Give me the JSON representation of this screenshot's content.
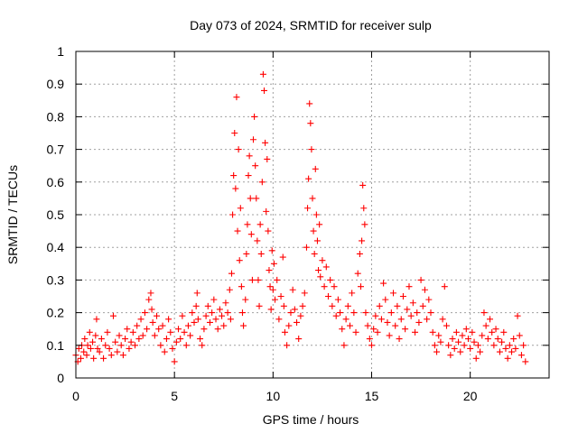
{
  "chart_data": {
    "type": "scatter",
    "title": "Day 073 of 2024, SRMTID for receiver sulp",
    "xlabel": "GPS time / hours",
    "ylabel": "SRMTID / TECUs",
    "xlim": [
      0,
      24
    ],
    "ylim": [
      0,
      1
    ],
    "xticks": [
      0,
      5,
      10,
      15,
      20
    ],
    "xtick_labels": [
      "0",
      "5",
      "10",
      "15",
      "20"
    ],
    "yticks": [
      0,
      0.1,
      0.2,
      0.3,
      0.4,
      0.5,
      0.6,
      0.7,
      0.8,
      0.9,
      1
    ],
    "ytick_labels": [
      "0",
      "0.1",
      "0.2",
      "0.3",
      "0.4",
      "0.5",
      "0.6",
      "0.7",
      "0.8",
      "0.9",
      "1"
    ],
    "grid": true,
    "marker": "plus",
    "color": "#ff0000",
    "series": [
      {
        "name": "SRMTID",
        "points": [
          [
            0.0,
            0.07
          ],
          [
            0.1,
            0.05
          ],
          [
            0.15,
            0.09
          ],
          [
            0.25,
            0.06
          ],
          [
            0.3,
            0.1
          ],
          [
            0.4,
            0.08
          ],
          [
            0.45,
            0.12
          ],
          [
            0.55,
            0.07
          ],
          [
            0.6,
            0.1
          ],
          [
            0.7,
            0.14
          ],
          [
            0.75,
            0.09
          ],
          [
            0.85,
            0.11
          ],
          [
            0.9,
            0.06
          ],
          [
            1.0,
            0.13
          ],
          [
            1.05,
            0.18
          ],
          [
            1.1,
            0.09
          ],
          [
            1.2,
            0.08
          ],
          [
            1.3,
            0.12
          ],
          [
            1.4,
            0.06
          ],
          [
            1.5,
            0.1
          ],
          [
            1.6,
            0.14
          ],
          [
            1.7,
            0.09
          ],
          [
            1.8,
            0.07
          ],
          [
            1.9,
            0.19
          ],
          [
            2.0,
            0.11
          ],
          [
            2.1,
            0.08
          ],
          [
            2.2,
            0.13
          ],
          [
            2.3,
            0.1
          ],
          [
            2.4,
            0.07
          ],
          [
            2.5,
            0.12
          ],
          [
            2.6,
            0.15
          ],
          [
            2.7,
            0.09
          ],
          [
            2.8,
            0.11
          ],
          [
            2.9,
            0.14
          ],
          [
            3.0,
            0.1
          ],
          [
            3.1,
            0.16
          ],
          [
            3.2,
            0.12
          ],
          [
            3.3,
            0.18
          ],
          [
            3.4,
            0.13
          ],
          [
            3.5,
            0.2
          ],
          [
            3.6,
            0.15
          ],
          [
            3.7,
            0.24
          ],
          [
            3.8,
            0.26
          ],
          [
            3.85,
            0.21
          ],
          [
            3.9,
            0.17
          ],
          [
            4.0,
            0.13
          ],
          [
            4.1,
            0.19
          ],
          [
            4.2,
            0.15
          ],
          [
            4.3,
            0.1
          ],
          [
            4.4,
            0.16
          ],
          [
            4.5,
            0.08
          ],
          [
            4.6,
            0.12
          ],
          [
            4.7,
            0.18
          ],
          [
            4.8,
            0.14
          ],
          [
            4.9,
            0.09
          ],
          [
            5.0,
            0.05
          ],
          [
            5.1,
            0.11
          ],
          [
            5.2,
            0.15
          ],
          [
            5.3,
            0.12
          ],
          [
            5.4,
            0.19
          ],
          [
            5.5,
            0.14
          ],
          [
            5.6,
            0.1
          ],
          [
            5.7,
            0.16
          ],
          [
            5.8,
            0.13
          ],
          [
            5.9,
            0.2
          ],
          [
            6.0,
            0.17
          ],
          [
            6.1,
            0.22
          ],
          [
            6.15,
            0.26
          ],
          [
            6.2,
            0.18
          ],
          [
            6.3,
            0.12
          ],
          [
            6.4,
            0.1
          ],
          [
            6.5,
            0.15
          ],
          [
            6.6,
            0.19
          ],
          [
            6.7,
            0.22
          ],
          [
            6.8,
            0.17
          ],
          [
            6.9,
            0.2
          ],
          [
            7.0,
            0.24
          ],
          [
            7.1,
            0.18
          ],
          [
            7.2,
            0.15
          ],
          [
            7.3,
            0.21
          ],
          [
            7.4,
            0.19
          ],
          [
            7.5,
            0.16
          ],
          [
            7.6,
            0.23
          ],
          [
            7.7,
            0.2
          ],
          [
            7.8,
            0.27
          ],
          [
            7.85,
            0.18
          ],
          [
            7.9,
            0.32
          ],
          [
            7.95,
            0.5
          ],
          [
            8.0,
            0.62
          ],
          [
            8.05,
            0.75
          ],
          [
            8.1,
            0.58
          ],
          [
            8.15,
            0.86
          ],
          [
            8.2,
            0.45
          ],
          [
            8.25,
            0.7
          ],
          [
            8.3,
            0.36
          ],
          [
            8.35,
            0.52
          ],
          [
            8.4,
            0.28
          ],
          [
            8.45,
            0.2
          ],
          [
            8.5,
            0.16
          ],
          [
            8.6,
            0.24
          ],
          [
            8.65,
            0.38
          ],
          [
            8.7,
            0.47
          ],
          [
            8.75,
            0.62
          ],
          [
            8.8,
            0.68
          ],
          [
            8.85,
            0.55
          ],
          [
            8.9,
            0.44
          ],
          [
            8.95,
            0.3
          ],
          [
            9.0,
            0.73
          ],
          [
            9.05,
            0.8
          ],
          [
            9.1,
            0.65
          ],
          [
            9.15,
            0.55
          ],
          [
            9.2,
            0.42
          ],
          [
            9.25,
            0.3
          ],
          [
            9.3,
            0.22
          ],
          [
            9.35,
            0.47
          ],
          [
            9.4,
            0.38
          ],
          [
            9.45,
            0.6
          ],
          [
            9.5,
            0.93
          ],
          [
            9.55,
            0.88
          ],
          [
            9.6,
            0.72
          ],
          [
            9.65,
            0.51
          ],
          [
            9.7,
            0.67
          ],
          [
            9.75,
            0.45
          ],
          [
            9.8,
            0.33
          ],
          [
            9.85,
            0.28
          ],
          [
            9.9,
            0.21
          ],
          [
            9.95,
            0.39
          ],
          [
            10.0,
            0.27
          ],
          [
            10.05,
            0.35
          ],
          [
            10.1,
            0.24
          ],
          [
            10.2,
            0.3
          ],
          [
            10.3,
            0.18
          ],
          [
            10.4,
            0.25
          ],
          [
            10.5,
            0.37
          ],
          [
            10.55,
            0.22
          ],
          [
            10.6,
            0.14
          ],
          [
            10.7,
            0.1
          ],
          [
            10.8,
            0.16
          ],
          [
            10.9,
            0.2
          ],
          [
            11.0,
            0.27
          ],
          [
            11.1,
            0.21
          ],
          [
            11.2,
            0.17
          ],
          [
            11.3,
            0.12
          ],
          [
            11.4,
            0.19
          ],
          [
            11.5,
            0.22
          ],
          [
            11.6,
            0.26
          ],
          [
            11.7,
            0.4
          ],
          [
            11.75,
            0.52
          ],
          [
            11.8,
            0.61
          ],
          [
            11.85,
            0.84
          ],
          [
            11.9,
            0.78
          ],
          [
            11.95,
            0.7
          ],
          [
            12.0,
            0.55
          ],
          [
            12.05,
            0.45
          ],
          [
            12.1,
            0.38
          ],
          [
            12.15,
            0.64
          ],
          [
            12.2,
            0.5
          ],
          [
            12.25,
            0.42
          ],
          [
            12.3,
            0.33
          ],
          [
            12.35,
            0.47
          ],
          [
            12.4,
            0.31
          ],
          [
            12.5,
            0.36
          ],
          [
            12.6,
            0.28
          ],
          [
            12.7,
            0.34
          ],
          [
            12.8,
            0.25
          ],
          [
            12.9,
            0.3
          ],
          [
            13.0,
            0.22
          ],
          [
            13.1,
            0.28
          ],
          [
            13.2,
            0.19
          ],
          [
            13.3,
            0.24
          ],
          [
            13.4,
            0.2
          ],
          [
            13.5,
            0.15
          ],
          [
            13.6,
            0.1
          ],
          [
            13.7,
            0.18
          ],
          [
            13.8,
            0.22
          ],
          [
            13.9,
            0.16
          ],
          [
            14.0,
            0.26
          ],
          [
            14.1,
            0.2
          ],
          [
            14.2,
            0.14
          ],
          [
            14.3,
            0.32
          ],
          [
            14.4,
            0.38
          ],
          [
            14.45,
            0.28
          ],
          [
            14.5,
            0.42
          ],
          [
            14.55,
            0.59
          ],
          [
            14.6,
            0.52
          ],
          [
            14.65,
            0.47
          ],
          [
            14.7,
            0.2
          ],
          [
            14.8,
            0.16
          ],
          [
            14.9,
            0.12
          ],
          [
            15.0,
            0.1
          ],
          [
            15.1,
            0.15
          ],
          [
            15.2,
            0.19
          ],
          [
            15.3,
            0.14
          ],
          [
            15.4,
            0.22
          ],
          [
            15.5,
            0.18
          ],
          [
            15.6,
            0.29
          ],
          [
            15.7,
            0.24
          ],
          [
            15.8,
            0.17
          ],
          [
            15.9,
            0.13
          ],
          [
            16.0,
            0.2
          ],
          [
            16.1,
            0.26
          ],
          [
            16.2,
            0.16
          ],
          [
            16.3,
            0.22
          ],
          [
            16.4,
            0.12
          ],
          [
            16.5,
            0.18
          ],
          [
            16.6,
            0.25
          ],
          [
            16.7,
            0.15
          ],
          [
            16.8,
            0.21
          ],
          [
            16.9,
            0.28
          ],
          [
            17.0,
            0.19
          ],
          [
            17.1,
            0.23
          ],
          [
            17.2,
            0.14
          ],
          [
            17.3,
            0.2
          ],
          [
            17.4,
            0.17
          ],
          [
            17.5,
            0.3
          ],
          [
            17.6,
            0.22
          ],
          [
            17.7,
            0.27
          ],
          [
            17.8,
            0.18
          ],
          [
            17.9,
            0.24
          ],
          [
            18.0,
            0.2
          ],
          [
            18.1,
            0.14
          ],
          [
            18.2,
            0.1
          ],
          [
            18.3,
            0.08
          ],
          [
            18.4,
            0.13
          ],
          [
            18.5,
            0.11
          ],
          [
            18.6,
            0.18
          ],
          [
            18.7,
            0.28
          ],
          [
            18.8,
            0.16
          ],
          [
            18.9,
            0.1
          ],
          [
            19.0,
            0.07
          ],
          [
            19.1,
            0.12
          ],
          [
            19.2,
            0.09
          ],
          [
            19.3,
            0.14
          ],
          [
            19.4,
            0.11
          ],
          [
            19.5,
            0.08
          ],
          [
            19.6,
            0.13
          ],
          [
            19.7,
            0.1
          ],
          [
            19.8,
            0.15
          ],
          [
            19.9,
            0.12
          ],
          [
            20.0,
            0.09
          ],
          [
            20.1,
            0.14
          ],
          [
            20.2,
            0.11
          ],
          [
            20.3,
            0.06
          ],
          [
            20.4,
            0.1
          ],
          [
            20.5,
            0.08
          ],
          [
            20.6,
            0.13
          ],
          [
            20.7,
            0.2
          ],
          [
            20.8,
            0.16
          ],
          [
            20.9,
            0.12
          ],
          [
            21.0,
            0.18
          ],
          [
            21.1,
            0.14
          ],
          [
            21.2,
            0.1
          ],
          [
            21.3,
            0.15
          ],
          [
            21.4,
            0.12
          ],
          [
            21.5,
            0.08
          ],
          [
            21.6,
            0.11
          ],
          [
            21.7,
            0.14
          ],
          [
            21.8,
            0.09
          ],
          [
            21.9,
            0.06
          ],
          [
            22.0,
            0.1
          ],
          [
            22.1,
            0.08
          ],
          [
            22.2,
            0.12
          ],
          [
            22.3,
            0.09
          ],
          [
            22.4,
            0.19
          ],
          [
            22.5,
            0.13
          ],
          [
            22.6,
            0.07
          ],
          [
            22.7,
            0.1
          ],
          [
            22.8,
            0.05
          ]
        ]
      }
    ]
  }
}
